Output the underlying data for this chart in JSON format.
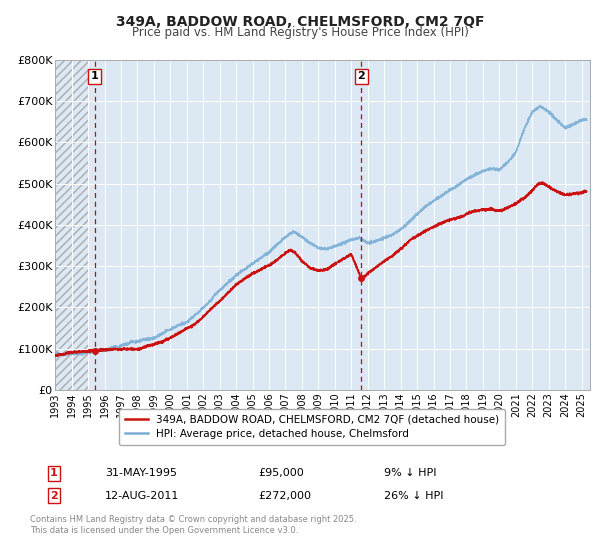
{
  "title": "349A, BADDOW ROAD, CHELMSFORD, CM2 7QF",
  "subtitle": "Price paid vs. HM Land Registry's House Price Index (HPI)",
  "ylim": [
    0,
    800000
  ],
  "yticks": [
    0,
    100000,
    200000,
    300000,
    400000,
    500000,
    600000,
    700000,
    800000
  ],
  "ytick_labels": [
    "£0",
    "£100K",
    "£200K",
    "£300K",
    "£400K",
    "£500K",
    "£600K",
    "£700K",
    "£800K"
  ],
  "xlim_start": 1993.0,
  "xlim_end": 2025.5,
  "xtick_years": [
    1993,
    1994,
    1995,
    1996,
    1997,
    1998,
    1999,
    2000,
    2001,
    2002,
    2003,
    2004,
    2005,
    2006,
    2007,
    2008,
    2009,
    2010,
    2011,
    2012,
    2013,
    2014,
    2015,
    2016,
    2017,
    2018,
    2019,
    2020,
    2021,
    2022,
    2023,
    2024,
    2025
  ],
  "background_color": "#ffffff",
  "plot_bg_color": "#dce9f5",
  "grid_color": "#ffffff",
  "hpi_color": "#7aadd4",
  "price_color": "#cc1111",
  "marker1_date": 1995.41,
  "marker1_value": 95000,
  "marker2_date": 2011.62,
  "marker2_value": 272000,
  "vline_color": "#cc0000",
  "legend_entries": [
    "349A, BADDOW ROAD, CHELMSFORD, CM2 7QF (detached house)",
    "HPI: Average price, detached house, Chelmsford"
  ],
  "legend_line_colors": [
    "#cc1111",
    "#7aadd4"
  ],
  "note_line1": "Contains HM Land Registry data © Crown copyright and database right 2025.",
  "note_line2": "This data is licensed under the Open Government Licence v3.0.",
  "table_row1": [
    "1",
    "31-MAY-1995",
    "£95,000",
    "9% ↓ HPI"
  ],
  "table_row2": [
    "2",
    "12-AUG-2011",
    "£272,000",
    "26% ↓ HPI"
  ]
}
